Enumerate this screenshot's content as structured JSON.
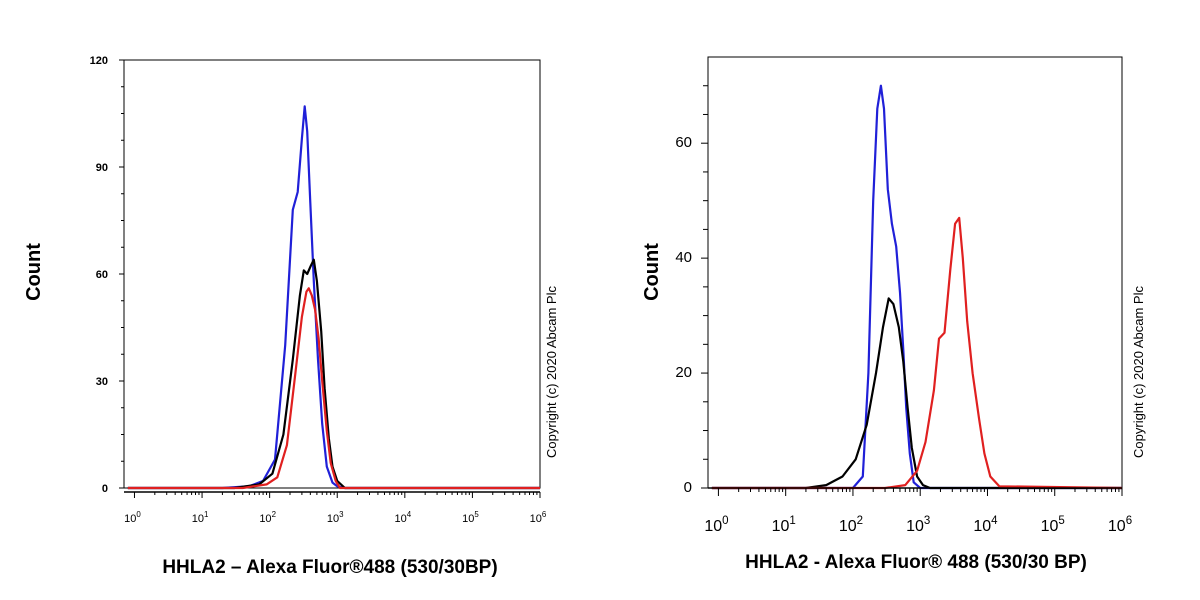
{
  "chart_data": [
    {
      "type": "line",
      "title": "",
      "xlabel": "HHLA2 – Alexa Fluor®488 (530/30BP)",
      "ylabel": "Count",
      "x_scale": "log",
      "xlim": [
        0.7,
        1000000
      ],
      "ylim": [
        0,
        120
      ],
      "y_ticks": [
        "0",
        "30",
        "60",
        "90",
        "120"
      ],
      "x_ticks": [
        {
          "base": "10",
          "exp": "0"
        },
        {
          "base": "10",
          "exp": "1"
        },
        {
          "base": "10",
          "exp": "2"
        },
        {
          "base": "10",
          "exp": "3"
        },
        {
          "base": "10",
          "exp": "4"
        },
        {
          "base": "10",
          "exp": "5"
        },
        {
          "base": "10",
          "exp": "6"
        }
      ],
      "copyright": "Copyright (c) 2020 Abcam Plc",
      "series": [
        {
          "color": "#2020d8",
          "x": [
            0.8,
            20,
            50,
            80,
            120,
            170,
            220,
            260,
            300,
            330,
            360,
            400,
            450,
            520,
            600,
            700,
            850,
            1000,
            1300,
            1000000
          ],
          "y": [
            0,
            0,
            0.5,
            2,
            8,
            40,
            78,
            83,
            98,
            107,
            100,
            80,
            58,
            36,
            18,
            6,
            1.5,
            0.5,
            0,
            0
          ]
        },
        {
          "color": "#000000",
          "x": [
            0.8,
            30,
            70,
            110,
            160,
            220,
            280,
            320,
            360,
            400,
            450,
            500,
            580,
            650,
            750,
            850,
            1000,
            1300,
            1000000
          ],
          "y": [
            0,
            0,
            1,
            4,
            15,
            36,
            54,
            61,
            60,
            62,
            64,
            58,
            44,
            28,
            14,
            6,
            2,
            0,
            0
          ]
        },
        {
          "color": "#e02020",
          "x": [
            0.8,
            40,
            90,
            130,
            180,
            240,
            300,
            350,
            380,
            420,
            470,
            530,
            600,
            700,
            800,
            950,
            1100,
            1000000
          ],
          "y": [
            0,
            0,
            1,
            3,
            12,
            32,
            48,
            55,
            56,
            54,
            50,
            42,
            30,
            16,
            7,
            2,
            0,
            0
          ]
        }
      ]
    },
    {
      "type": "line",
      "title": "",
      "xlabel": "HHLA2 - Alexa Fluor® 488 (530/30 BP)",
      "ylabel": "Count",
      "x_scale": "log",
      "xlim": [
        0.7,
        1000000
      ],
      "ylim": [
        0,
        75
      ],
      "y_ticks": [
        "0",
        "20",
        "40",
        "60"
      ],
      "x_ticks": [
        {
          "base": "10",
          "exp": "0"
        },
        {
          "base": "10",
          "exp": "1"
        },
        {
          "base": "10",
          "exp": "2"
        },
        {
          "base": "10",
          "exp": "3"
        },
        {
          "base": "10",
          "exp": "4"
        },
        {
          "base": "10",
          "exp": "5"
        },
        {
          "base": "10",
          "exp": "6"
        }
      ],
      "copyright": "Copyright (c) 2020 Abcam Plc",
      "series": [
        {
          "color": "#2020d8",
          "x": [
            0.8,
            100,
            140,
            170,
            200,
            230,
            260,
            290,
            330,
            380,
            440,
            500,
            560,
            620,
            700,
            800,
            1000,
            1000000
          ],
          "y": [
            0,
            0,
            2,
            20,
            50,
            66,
            70,
            66,
            52,
            46,
            42,
            34,
            24,
            14,
            6,
            1,
            0,
            0
          ]
        },
        {
          "color": "#000000",
          "x": [
            0.8,
            20,
            40,
            70,
            110,
            160,
            220,
            280,
            340,
            400,
            480,
            560,
            650,
            750,
            900,
            1100,
            1400,
            1000000
          ],
          "y": [
            0,
            0,
            0.5,
            2,
            5,
            11,
            20,
            28,
            33,
            32,
            28,
            22,
            14,
            7,
            2,
            0.5,
            0,
            0
          ]
        },
        {
          "color": "#e02020",
          "x": [
            0.8,
            100,
            300,
            600,
            900,
            1200,
            1600,
            1900,
            2300,
            2800,
            3300,
            3800,
            4300,
            5000,
            6000,
            7500,
            9000,
            11000,
            15000,
            1000000
          ],
          "y": [
            0,
            0,
            0,
            0.5,
            3,
            8,
            17,
            26,
            27,
            38,
            46,
            47,
            40,
            29,
            20,
            12,
            6,
            2,
            0.3,
            0
          ]
        }
      ]
    }
  ]
}
